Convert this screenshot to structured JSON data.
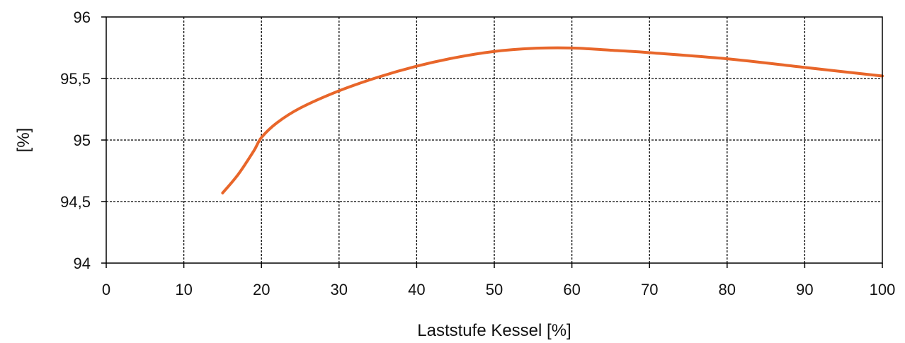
{
  "chart_data": {
    "type": "line",
    "xlabel": "Laststufe Kessel [%]",
    "ylabel": "[%]",
    "xlim": [
      0,
      100
    ],
    "ylim": [
      94,
      96
    ],
    "x_ticks": [
      0,
      10,
      20,
      30,
      40,
      50,
      60,
      70,
      80,
      90,
      100
    ],
    "x_tick_labels": [
      "0",
      "10",
      "20",
      "30",
      "40",
      "50",
      "60",
      "70",
      "80",
      "90",
      "100"
    ],
    "y_ticks": [
      94,
      94.5,
      95,
      95.5,
      96
    ],
    "y_tick_labels": [
      "94",
      "94,5",
      "95",
      "95,5",
      "96"
    ],
    "grid": true,
    "series": [
      {
        "color": "#e8662a",
        "x": [
          15,
          17,
          19,
          20,
          22,
          25,
          30,
          35,
          40,
          45,
          50,
          55,
          60,
          65,
          70,
          80,
          90,
          100
        ],
        "y": [
          94.57,
          94.72,
          94.91,
          95.02,
          95.14,
          95.26,
          95.4,
          95.51,
          95.6,
          95.67,
          95.72,
          95.745,
          95.748,
          95.73,
          95.71,
          95.66,
          95.59,
          95.52
        ]
      }
    ]
  }
}
